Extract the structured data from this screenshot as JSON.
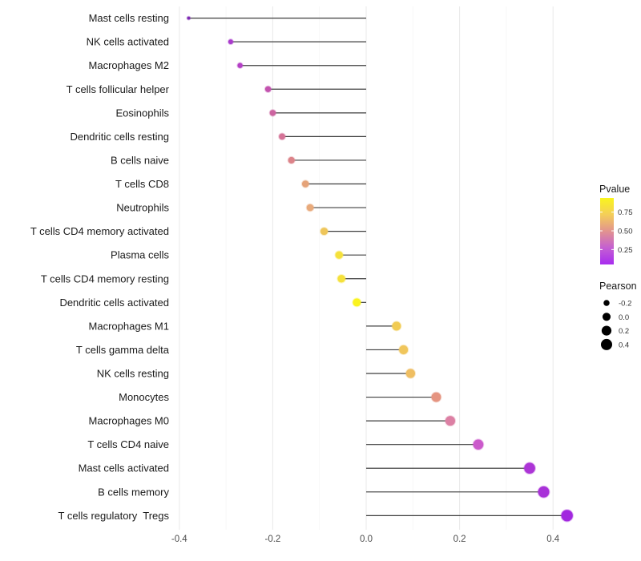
{
  "chart_data": {
    "type": "lollipop",
    "variant": "horizontal dot-and-segment (ggplot style)",
    "title": "",
    "xlabel": "",
    "ylabel": "",
    "x_axis": {
      "tick_labels": [
        "-0.4",
        "-0.2",
        "0.0",
        "0.2",
        "0.4"
      ],
      "tick_values": [
        -0.4,
        -0.2,
        0.0,
        0.2,
        0.4
      ],
      "minor_tick_values": [
        -0.3,
        -0.1,
        0.1,
        0.3
      ],
      "range": [
        -0.415,
        0.475
      ],
      "baseline": 0.0
    },
    "grid": "vertical major + minor, light gray, white background",
    "rows": [
      {
        "label": "Mast cells resting",
        "pearson": -0.38,
        "pvalue_est": 0.02,
        "color": "#7E2AB4"
      },
      {
        "label": "NK cells activated",
        "pearson": -0.29,
        "pvalue_est": 0.15,
        "color": "#A93BCC"
      },
      {
        "label": "Macrophages M2",
        "pearson": -0.27,
        "pvalue_est": 0.19,
        "color": "#B440C6"
      },
      {
        "label": "T cells follicular helper",
        "pearson": -0.21,
        "pvalue_est": 0.3,
        "color": "#C353AF"
      },
      {
        "label": "Eosinophils",
        "pearson": -0.2,
        "pvalue_est": 0.35,
        "color": "#CC64A0"
      },
      {
        "label": "Dendritic cells resting",
        "pearson": -0.18,
        "pvalue_est": 0.4,
        "color": "#D57397"
      },
      {
        "label": "B cells naive",
        "pearson": -0.16,
        "pvalue_est": 0.46,
        "color": "#DC8389"
      },
      {
        "label": "T cells CD8",
        "pearson": -0.13,
        "pvalue_est": 0.55,
        "color": "#E5A379"
      },
      {
        "label": "Neutrophils",
        "pearson": -0.12,
        "pvalue_est": 0.57,
        "color": "#E8AA7B"
      },
      {
        "label": "T cells CD4 memory activated",
        "pearson": -0.09,
        "pvalue_est": 0.7,
        "color": "#EFC65A"
      },
      {
        "label": "Plasma cells",
        "pearson": -0.058,
        "pvalue_est": 0.81,
        "color": "#F5E13C"
      },
      {
        "label": "T cells CD4 memory resting",
        "pearson": -0.053,
        "pvalue_est": 0.81,
        "color": "#F5E13C"
      },
      {
        "label": "Dendritic cells activated",
        "pearson": -0.02,
        "pvalue_est": 0.93,
        "color": "#FAF31F"
      },
      {
        "label": "Macrophages M1",
        "pearson": 0.065,
        "pvalue_est": 0.73,
        "color": "#F1CB52"
      },
      {
        "label": "T cells gamma delta",
        "pearson": 0.08,
        "pvalue_est": 0.71,
        "color": "#F0C65C"
      },
      {
        "label": "NK cells resting",
        "pearson": 0.095,
        "pvalue_est": 0.67,
        "color": "#EFBE62"
      },
      {
        "label": "Monocytes",
        "pearson": 0.15,
        "pvalue_est": 0.51,
        "color": "#E59481"
      },
      {
        "label": "Macrophages M0",
        "pearson": 0.18,
        "pvalue_est": 0.41,
        "color": "#DC80A4"
      },
      {
        "label": "T cells CD4 naive",
        "pearson": 0.24,
        "pvalue_est": 0.28,
        "color": "#CB5ACB"
      },
      {
        "label": "Mast cells activated",
        "pearson": 0.35,
        "pvalue_est": 0.16,
        "color": "#AC35D6"
      },
      {
        "label": "B cells memory",
        "pearson": 0.38,
        "pvalue_est": 0.15,
        "color": "#A832D8"
      },
      {
        "label": "T cells regulatory  Tregs",
        "pearson": 0.43,
        "pvalue_est": 0.12,
        "color": "#A228DF"
      }
    ]
  },
  "legend": {
    "pvalue": {
      "title": "Pvalue",
      "tick_labels": [
        "0.75",
        "0.50",
        "0.25"
      ],
      "tick_values": [
        0.75,
        0.5,
        0.25
      ],
      "domain": [
        0.05,
        0.94
      ],
      "gradient_top_to_bottom": [
        "#F9F51D",
        "#F4CE59",
        "#E2938F",
        "#C45FD2",
        "#A82CEF"
      ]
    },
    "pearson": {
      "title": "Pearson",
      "entries": [
        {
          "label": "-0.2",
          "value": -0.2
        },
        {
          "label": "0.0",
          "value": 0.0
        },
        {
          "label": "0.2",
          "value": 0.2
        },
        {
          "label": "0.4",
          "value": 0.4
        }
      ],
      "dot_color": "#000000"
    }
  },
  "style": {
    "background": "#FFFFFF",
    "stem_color": "#3F3F3F",
    "grid_major": "#E9E9E9",
    "grid_minor": "#F4F4F4",
    "axis_text_color": "#4D4D4D",
    "label_text_color": "#1A1A1A",
    "legend_text_color": "#333333"
  }
}
